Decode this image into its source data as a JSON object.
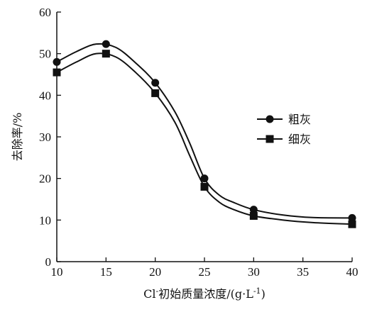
{
  "chart_data": {
    "type": "line",
    "xlabel": {
      "main": "Cl",
      "sup": "-",
      "rest": "初始质量浓度/(g·L",
      "unit_sup": "-1",
      "close": ")"
    },
    "ylabel": "去除率/%",
    "xlim": [
      10,
      40
    ],
    "ylim": [
      0,
      60
    ],
    "xticks": [
      10,
      15,
      20,
      25,
      30,
      35,
      40
    ],
    "yticks": [
      0,
      10,
      20,
      30,
      40,
      50,
      60
    ],
    "legend_position": "right",
    "series": [
      {
        "name": "粗灰",
        "marker": "circle",
        "color": "#111111",
        "x": [
          10,
          15,
          20,
          25,
          30,
          40
        ],
        "y": [
          48,
          52.3,
          43,
          20,
          12.5,
          10.5
        ],
        "curve": [
          [
            10,
            48
          ],
          [
            12,
            50.5
          ],
          [
            14,
            52.3
          ],
          [
            16,
            51.5
          ],
          [
            18,
            47.8
          ],
          [
            20,
            43
          ],
          [
            22,
            36
          ],
          [
            23.5,
            28.5
          ],
          [
            25,
            20
          ],
          [
            26.5,
            16
          ],
          [
            28,
            14.2
          ],
          [
            30,
            12.5
          ],
          [
            33,
            11.2
          ],
          [
            36,
            10.6
          ],
          [
            40,
            10.5
          ]
        ]
      },
      {
        "name": "细灰",
        "marker": "square",
        "color": "#111111",
        "x": [
          10,
          15,
          20,
          25,
          30,
          40
        ],
        "y": [
          45.5,
          50,
          40.5,
          18,
          11,
          9
        ],
        "curve": [
          [
            10,
            45.5
          ],
          [
            12,
            48
          ],
          [
            14,
            50
          ],
          [
            16,
            49.2
          ],
          [
            18,
            45.5
          ],
          [
            20,
            40.5
          ],
          [
            22,
            33.5
          ],
          [
            23.5,
            25.5
          ],
          [
            25,
            18
          ],
          [
            26.5,
            14.3
          ],
          [
            28,
            12.5
          ],
          [
            30,
            11
          ],
          [
            33,
            10
          ],
          [
            36,
            9.4
          ],
          [
            40,
            9
          ]
        ]
      }
    ]
  }
}
